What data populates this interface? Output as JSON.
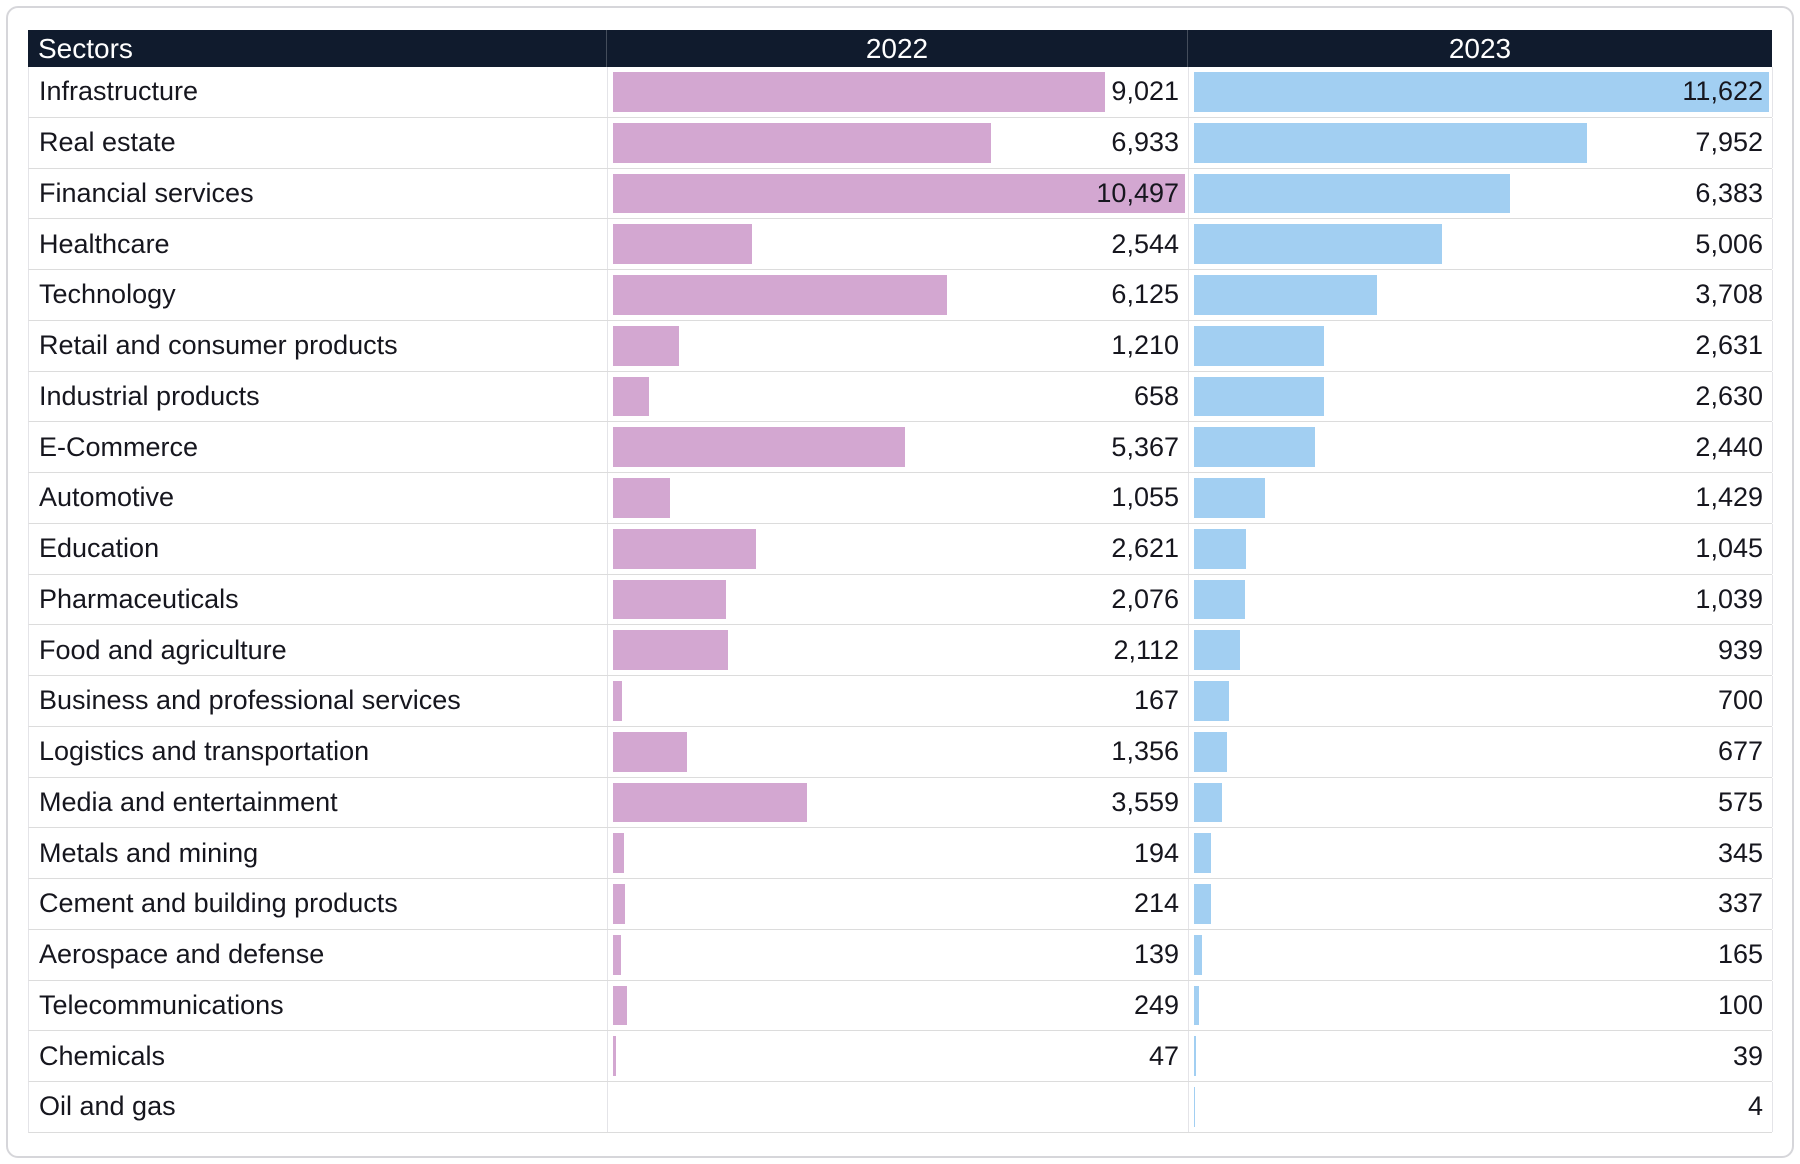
{
  "style": {
    "header_bg": "#101b2d",
    "header_text": "#ffffff",
    "text_color": "#16161e",
    "row_border": "#dcdcdc",
    "column_border": "#e4e4e8",
    "frame_border": "#d6d6da",
    "bar_2022": "#d3a7d1",
    "bar_2023": "#a2cff2"
  },
  "chart_data": {
    "type": "bar",
    "orientation": "horizontal",
    "title": "",
    "columns": [
      "Sectors",
      "2022",
      "2023"
    ],
    "categories": [
      "Infrastructure",
      "Real estate",
      "Financial services",
      "Healthcare",
      "Technology",
      "Retail and consumer products",
      "Industrial products",
      "E-Commerce",
      "Automotive",
      "Education",
      "Pharmaceuticals",
      "Food and agriculture",
      "Business and professional services",
      "Logistics and transportation",
      "Media and entertainment",
      "Metals and mining",
      "Cement and building products",
      "Aerospace and defense",
      "Telecommunications",
      "Chemicals",
      "Oil and gas"
    ],
    "series": [
      {
        "name": "2022",
        "color": "#d3a7d1",
        "axis_max": 10497,
        "values": [
          9021,
          6933,
          10497,
          2544,
          6125,
          1210,
          658,
          5367,
          1055,
          2621,
          2076,
          2112,
          167,
          1356,
          3559,
          194,
          214,
          139,
          249,
          47,
          null
        ]
      },
      {
        "name": "2023",
        "color": "#a2cff2",
        "axis_max": 11622,
        "values": [
          11622,
          7952,
          6383,
          5006,
          3708,
          2631,
          2630,
          2440,
          1429,
          1045,
          1039,
          939,
          700,
          677,
          575,
          345,
          337,
          165,
          100,
          39,
          4
        ]
      }
    ],
    "layout": {
      "legend": "none",
      "value_labels": "right-aligned-in-cell",
      "bar_scaling": "each year column scaled to its own maximum",
      "grid": "horizontal row separators"
    }
  }
}
